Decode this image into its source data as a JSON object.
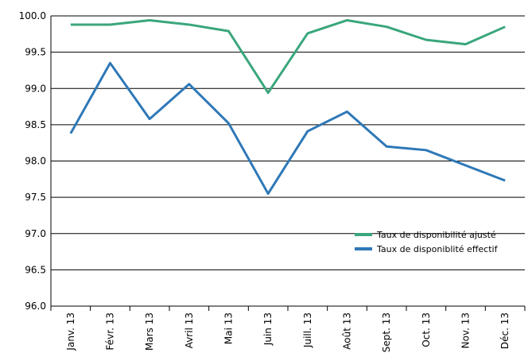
{
  "chart_data": {
    "type": "line",
    "categories": [
      "Janv. 13",
      "Févr. 13",
      "Mars 13",
      "Avril 13",
      "Mai 13",
      "Juin 13",
      "Juill. 13",
      "Août 13",
      "Sept. 13",
      "Oct. 13",
      "Nov. 13",
      "Déc. 13"
    ],
    "series": [
      {
        "name": "Taux de disponibilité ajusté",
        "color": "#3aa67c",
        "values": [
          99.88,
          99.88,
          99.94,
          99.88,
          99.79,
          98.94,
          99.76,
          99.94,
          99.85,
          99.67,
          99.61,
          99.85
        ]
      },
      {
        "name": "Taux de disponiblité effectif",
        "color": "#2e78b7",
        "values": [
          98.38,
          99.35,
          98.58,
          99.06,
          98.52,
          97.55,
          98.41,
          98.68,
          98.2,
          98.15,
          97.94,
          97.73
        ]
      }
    ],
    "ylim": [
      96,
      100
    ],
    "yticks": [
      {
        "value": 96,
        "label": "96.0"
      },
      {
        "value": 96.5,
        "label": "96.5"
      },
      {
        "value": 97,
        "label": "97.0"
      },
      {
        "value": 97.5,
        "label": "97.5"
      },
      {
        "value": 98,
        "label": "98.0"
      },
      {
        "value": 98.5,
        "label": "98.5"
      },
      {
        "value": 99,
        "label": "99.0"
      },
      {
        "value": 99.5,
        "label": "99.5"
      },
      {
        "value": 100,
        "label": "100.0"
      }
    ],
    "grid": true,
    "legend": "lower right"
  }
}
